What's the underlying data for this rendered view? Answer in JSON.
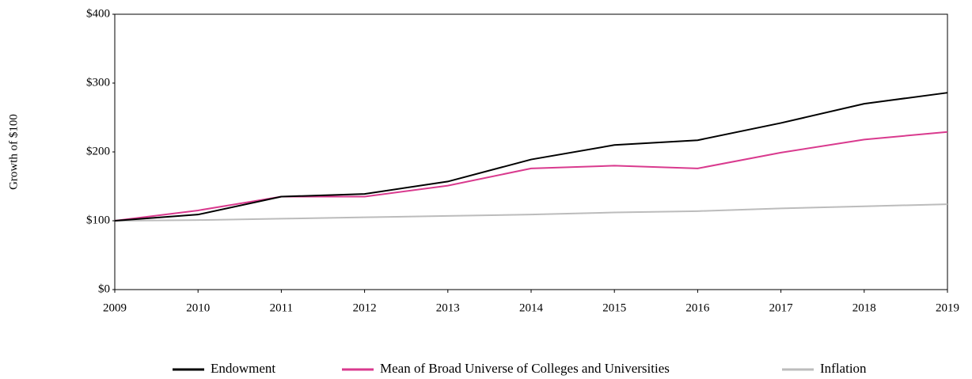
{
  "chart_data": {
    "type": "line",
    "y_label": "Growth of $100",
    "x": [
      2009,
      2010,
      2011,
      2012,
      2013,
      2014,
      2015,
      2016,
      2017,
      2018,
      2019
    ],
    "xlim": [
      2009,
      2019
    ],
    "xticks": [
      2009,
      2010,
      2011,
      2012,
      2013,
      2014,
      2015,
      2016,
      2017,
      2018,
      2019
    ],
    "ylim": [
      0,
      400
    ],
    "yticks": [
      {
        "value": 0,
        "label": "$0"
      },
      {
        "value": 100,
        "label": "$100"
      },
      {
        "value": 200,
        "label": "$200"
      },
      {
        "value": 300,
        "label": "$300"
      },
      {
        "value": 400,
        "label": "$400"
      }
    ],
    "legend": "bottom",
    "series": [
      {
        "name": "Endowment",
        "color": "#000000",
        "values": [
          100,
          109,
          135,
          139,
          157,
          189,
          210,
          217,
          242,
          270,
          286
        ]
      },
      {
        "name": "Mean of Broad Universe of Colleges and Universities",
        "color": "#d93a8e",
        "values": [
          100,
          115,
          135,
          135,
          151,
          176,
          180,
          176,
          199,
          218,
          229
        ]
      },
      {
        "name": "Inflation",
        "color": "#bcbcbc",
        "values": [
          100,
          101,
          103,
          105,
          107,
          109,
          112,
          114,
          118,
          121,
          124
        ]
      }
    ]
  }
}
